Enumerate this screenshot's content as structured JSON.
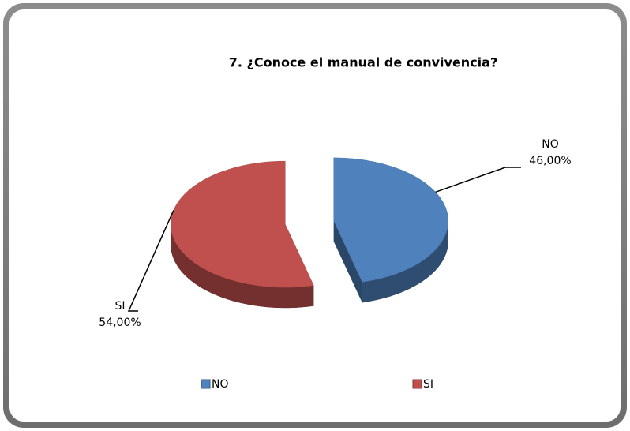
{
  "chart_data": {
    "type": "pie",
    "title": "7. ¿Conoce el manual de convivencia?",
    "categories": [
      "NO",
      "SI"
    ],
    "values": [
      46,
      54
    ],
    "value_labels": [
      "46,00%",
      "54,00%"
    ],
    "colors": [
      "#4f81bd",
      "#c0504d"
    ],
    "legend": "bottom"
  }
}
